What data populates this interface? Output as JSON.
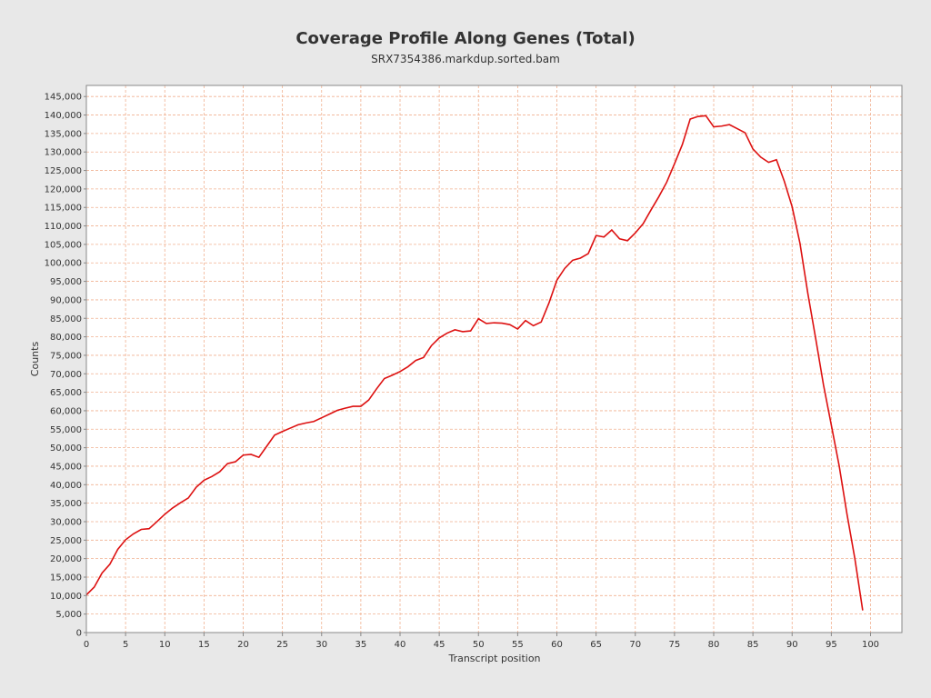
{
  "chart_data": {
    "type": "line",
    "title": "Coverage Profile Along Genes (Total)",
    "subtitle": "SRX7354386.markdup.sorted.bam",
    "xlabel": "Transcript position",
    "ylabel": "Counts",
    "xlim": [
      0,
      104
    ],
    "ylim": [
      0,
      148000
    ],
    "xticks": [
      0,
      5,
      10,
      15,
      20,
      25,
      30,
      35,
      40,
      45,
      50,
      55,
      60,
      65,
      70,
      75,
      80,
      85,
      90,
      95,
      100
    ],
    "yticks": [
      0,
      5000,
      10000,
      15000,
      20000,
      25000,
      30000,
      35000,
      40000,
      45000,
      50000,
      55000,
      60000,
      65000,
      70000,
      75000,
      80000,
      85000,
      90000,
      95000,
      100000,
      105000,
      110000,
      115000,
      120000,
      125000,
      130000,
      135000,
      140000,
      145000
    ],
    "grid": true,
    "colors": {
      "line": "#dd1111",
      "grid": "#f0b090",
      "plot_bg": "#ffffff",
      "page_bg": "#e8e8e8"
    },
    "series": [
      {
        "x": [
          0,
          1,
          2,
          3,
          4,
          5,
          6,
          7,
          8,
          9,
          10,
          11,
          12,
          13,
          14,
          15,
          16,
          17,
          18,
          19,
          20,
          21,
          22,
          23,
          24,
          25,
          26,
          27,
          28,
          29,
          30,
          31,
          32,
          33,
          34,
          35,
          36,
          37,
          38,
          39,
          40,
          41,
          42,
          43,
          44,
          45,
          46,
          47,
          48,
          49,
          50,
          51,
          52,
          53,
          54,
          55,
          56,
          57,
          58,
          59,
          60,
          61,
          62,
          63,
          64,
          65,
          66,
          67,
          68,
          69,
          70,
          71,
          72,
          73,
          74,
          75,
          76,
          77,
          78,
          79,
          80,
          81,
          82,
          83,
          84,
          85,
          86,
          87,
          88,
          89,
          90,
          91,
          92,
          93,
          94,
          95,
          96,
          97,
          98,
          99
        ],
        "y": [
          10200,
          12300,
          16100,
          18500,
          22500,
          25100,
          26700,
          27900,
          28100,
          30000,
          32000,
          33700,
          35100,
          36400,
          39300,
          41200,
          42200,
          43500,
          45700,
          46200,
          48000,
          48200,
          47400,
          50400,
          53400,
          54400,
          55300,
          56200,
          56700,
          57100,
          58100,
          59100,
          60100,
          60700,
          61200,
          61200,
          62900,
          65900,
          68700,
          69600,
          70600,
          71900,
          73600,
          74400,
          77600,
          79700,
          81000,
          81900,
          81400,
          81600,
          84900,
          83600,
          83800,
          83700,
          83300,
          82100,
          84400,
          83000,
          84000,
          89200,
          95300,
          98500,
          100700,
          101300,
          102500,
          107400,
          107000,
          108900,
          106500,
          106000,
          108100,
          110600,
          114300,
          117900,
          121800,
          126800,
          132000,
          138900,
          139600,
          139800,
          136800,
          137000,
          137400,
          136300,
          135200,
          130800,
          128600,
          127200,
          127900,
          122100,
          115200,
          105300,
          91800,
          79600,
          67000,
          56100,
          45100,
          32000,
          20000,
          6000
        ]
      }
    ]
  }
}
